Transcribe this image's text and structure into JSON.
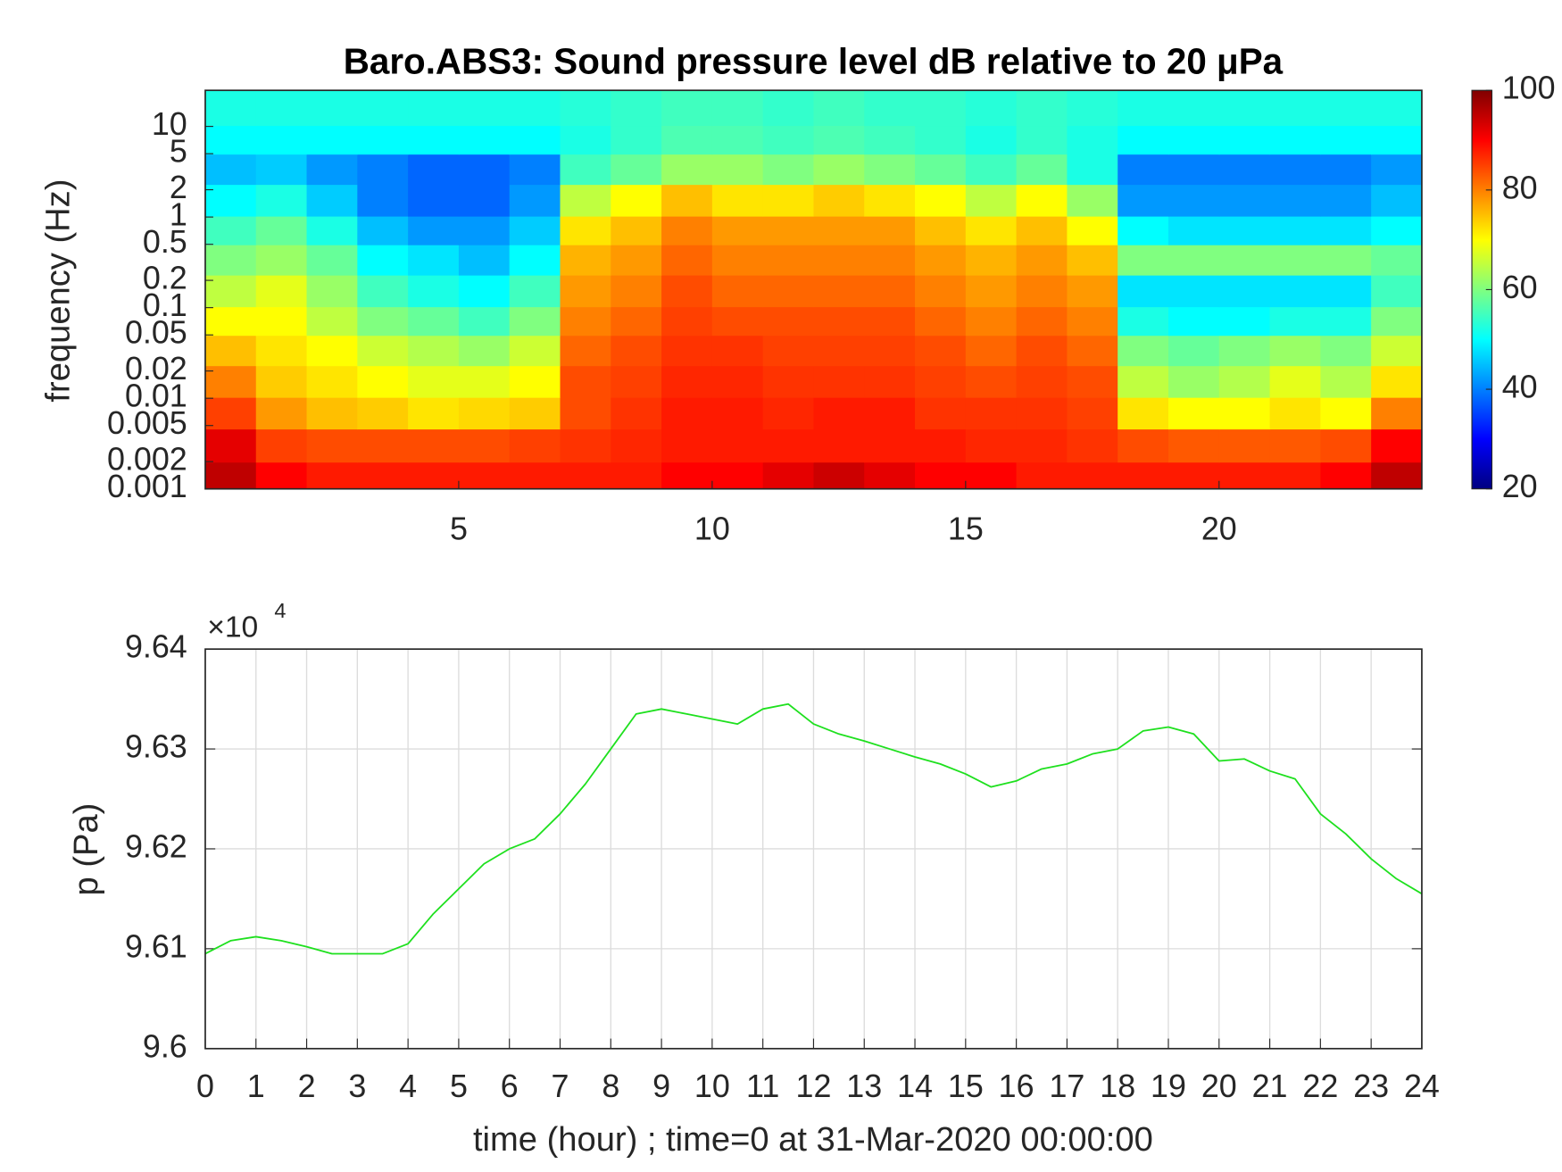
{
  "chart_data": [
    {
      "type": "heatmap",
      "title": "Baro.ABS3: Sound pressure level dB relative to 20 μPa",
      "ylabel": "frequency (Hz)",
      "colormap": "jet",
      "x": [
        0.5,
        1.5,
        2.5,
        3.5,
        4.5,
        5.5,
        6.5,
        7.5,
        8.5,
        9.5,
        10.5,
        11.5,
        12.5,
        13.5,
        14.5,
        15.5,
        16.5,
        17.5,
        18.5,
        19.5,
        20.5,
        21.5,
        22.5,
        23.5
      ],
      "y": [
        0.0013,
        0.003,
        0.007,
        0.015,
        0.035,
        0.07,
        0.15,
        0.35,
        0.7,
        1.5,
        3.5,
        7,
        15
      ],
      "z": [
        [
          95,
          90,
          88,
          88,
          88,
          88,
          88,
          88,
          88,
          90,
          90,
          92,
          94,
          92,
          90,
          90,
          88,
          88,
          88,
          88,
          88,
          88,
          90,
          95
        ],
        [
          92,
          85,
          84,
          84,
          84,
          84,
          85,
          86,
          87,
          88,
          88,
          88,
          88,
          88,
          88,
          87,
          87,
          86,
          84,
          83,
          83,
          83,
          84,
          90
        ],
        [
          85,
          78,
          75,
          74,
          72,
          73,
          74,
          84,
          86,
          88,
          88,
          87,
          88,
          88,
          86,
          86,
          86,
          85,
          72,
          70,
          70,
          72,
          70,
          80
        ],
        [
          80,
          74,
          72,
          70,
          68,
          68,
          70,
          84,
          85,
          87,
          87,
          86,
          86,
          86,
          85,
          84,
          85,
          84,
          65,
          62,
          64,
          68,
          64,
          72
        ],
        [
          75,
          72,
          70,
          66,
          64,
          62,
          66,
          82,
          84,
          86,
          86,
          85,
          85,
          85,
          84,
          82,
          84,
          82,
          60,
          58,
          60,
          62,
          60,
          66
        ],
        [
          70,
          70,
          65,
          60,
          58,
          55,
          60,
          80,
          82,
          85,
          84,
          84,
          84,
          84,
          82,
          80,
          82,
          80,
          52,
          50,
          50,
          52,
          52,
          60
        ],
        [
          65,
          68,
          62,
          55,
          52,
          50,
          55,
          78,
          80,
          84,
          82,
          82,
          82,
          82,
          80,
          78,
          80,
          78,
          48,
          48,
          48,
          48,
          48,
          55
        ],
        [
          60,
          62,
          58,
          50,
          48,
          45,
          50,
          76,
          78,
          82,
          80,
          80,
          80,
          80,
          78,
          76,
          78,
          75,
          60,
          60,
          60,
          60,
          60,
          58
        ],
        [
          55,
          58,
          52,
          45,
          42,
          42,
          46,
          72,
          75,
          80,
          78,
          78,
          78,
          78,
          75,
          72,
          75,
          70,
          50,
          48,
          48,
          48,
          48,
          50
        ],
        [
          50,
          52,
          46,
          40,
          38,
          38,
          42,
          65,
          70,
          75,
          72,
          72,
          74,
          72,
          70,
          65,
          70,
          62,
          42,
          42,
          42,
          42,
          42,
          45
        ],
        [
          45,
          46,
          42,
          40,
          38,
          38,
          40,
          55,
          58,
          62,
          62,
          60,
          62,
          60,
          58,
          55,
          58,
          52,
          40,
          40,
          40,
          40,
          40,
          42
        ],
        [
          50,
          50,
          50,
          50,
          50,
          50,
          50,
          52,
          54,
          56,
          56,
          55,
          56,
          55,
          54,
          52,
          54,
          52,
          50,
          50,
          50,
          50,
          50,
          50
        ],
        [
          52,
          52,
          52,
          52,
          52,
          52,
          52,
          53,
          54,
          55,
          55,
          54,
          55,
          54,
          54,
          53,
          54,
          53,
          52,
          52,
          52,
          52,
          52,
          52
        ]
      ],
      "xlim": [
        0,
        24
      ],
      "xticks": [
        5,
        10,
        15,
        20
      ],
      "ylim": [
        0.001,
        25
      ],
      "yscale": "log",
      "yticks": [
        0.001,
        0.002,
        0.005,
        0.01,
        0.02,
        0.05,
        0.1,
        0.2,
        0.5,
        1,
        2,
        5,
        10
      ],
      "zlim": [
        20,
        100
      ],
      "zticks": [
        20,
        40,
        60,
        80,
        100
      ]
    },
    {
      "type": "line",
      "xlabel": "time (hour) ; time=0 at 31-Mar-2020 00:00:00",
      "ylabel": "p (Pa)",
      "color": "#1ee01e",
      "grid": true,
      "y_multiplier": {
        "base": "×10",
        "exponent": "4"
      },
      "x": [
        0,
        0.5,
        1,
        1.5,
        2,
        2.5,
        3,
        3.5,
        4,
        4.5,
        5,
        5.5,
        6,
        6.5,
        7,
        7.5,
        8,
        8.5,
        9,
        9.5,
        10,
        10.5,
        11,
        11.5,
        12,
        12.5,
        13,
        13.5,
        14,
        14.5,
        15,
        15.5,
        16,
        16.5,
        17,
        17.5,
        18,
        18.5,
        19,
        19.5,
        20,
        20.5,
        21,
        21.5,
        22,
        22.5,
        23,
        23.5,
        24
      ],
      "values": [
        96095,
        96108,
        96112,
        96108,
        96102,
        96095,
        96095,
        96095,
        96105,
        96135,
        96160,
        96185,
        96200,
        96210,
        96235,
        96265,
        96300,
        96335,
        96340,
        96335,
        96330,
        96325,
        96340,
        96345,
        96325,
        96315,
        96308,
        96300,
        96292,
        96285,
        96275,
        96262,
        96268,
        96280,
        96285,
        96295,
        96300,
        96318,
        96322,
        96315,
        96288,
        96290,
        96278,
        96270,
        96235,
        96215,
        96190,
        96170,
        96155
      ],
      "xlim": [
        0,
        24
      ],
      "xticks": [
        0,
        1,
        2,
        3,
        4,
        5,
        6,
        7,
        8,
        9,
        10,
        11,
        12,
        13,
        14,
        15,
        16,
        17,
        18,
        19,
        20,
        21,
        22,
        23,
        24
      ],
      "ylim": [
        96000,
        96400
      ],
      "yticks": [
        {
          "value": 96000,
          "label": "9.6"
        },
        {
          "value": 96100,
          "label": "9.61"
        },
        {
          "value": 96200,
          "label": "9.62"
        },
        {
          "value": 96300,
          "label": "9.63"
        },
        {
          "value": 96400,
          "label": "9.64"
        }
      ]
    }
  ]
}
